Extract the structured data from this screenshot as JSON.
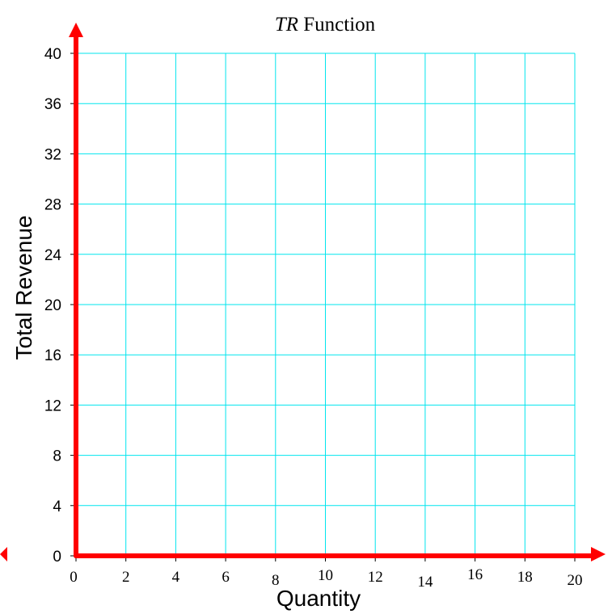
{
  "chart_data": {
    "type": "line",
    "title_italic": "TR",
    "title_rest": " Function",
    "xlabel": "Quantity",
    "ylabel": "Total Revenue",
    "xlim": [
      0,
      20
    ],
    "ylim": [
      0,
      40
    ],
    "x_ticks": [
      "0",
      "2",
      "4",
      "6",
      "8",
      "10",
      "12",
      "14",
      "16",
      "18",
      "20"
    ],
    "y_ticks": [
      "0",
      "4",
      "8",
      "12",
      "16",
      "20",
      "24",
      "28",
      "32",
      "36",
      "40"
    ],
    "grid": true,
    "series": []
  },
  "colors": {
    "axis": "#ff0000",
    "grid": "#00e5ee",
    "background": "#ffffff"
  }
}
